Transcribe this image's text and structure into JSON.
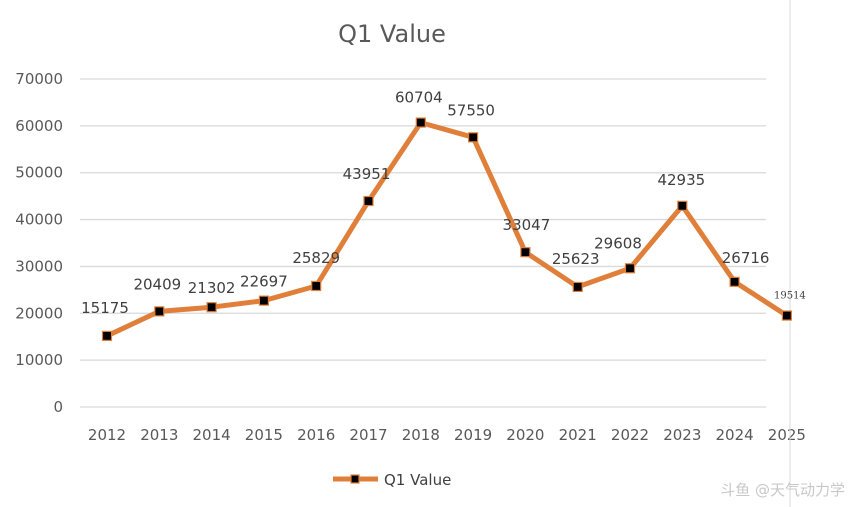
{
  "chart_data": {
    "type": "line",
    "title": "Q1 Value",
    "xlabel": "",
    "ylabel": "",
    "ylim": [
      0,
      70000
    ],
    "yticks": [
      0,
      10000,
      20000,
      30000,
      40000,
      50000,
      60000,
      70000
    ],
    "categories": [
      "2012",
      "2013",
      "2014",
      "2015",
      "2016",
      "2017",
      "2018",
      "2019",
      "2020",
      "2021",
      "2022",
      "2023",
      "2024",
      "2025"
    ],
    "series": [
      {
        "name": "Q1 Value",
        "values": [
          15175,
          20409,
          21302,
          22697,
          25829,
          43951,
          60704,
          57550,
          33047,
          25623,
          29608,
          42935,
          26716,
          19514
        ],
        "data_labels": [
          "15175",
          "20409",
          "21302",
          "22697",
          "25829",
          "43951",
          "60704",
          "57550",
          "33047",
          "25623",
          "29608",
          "42935",
          "26716",
          "19514"
        ]
      }
    ],
    "grid": true,
    "legend_position": "bottom",
    "colors": {
      "line": "#e07f3a",
      "marker": "#000000",
      "grid": "#d9d9d9",
      "text": "#595959"
    }
  },
  "watermark": "斗鱼 @天气动力学"
}
